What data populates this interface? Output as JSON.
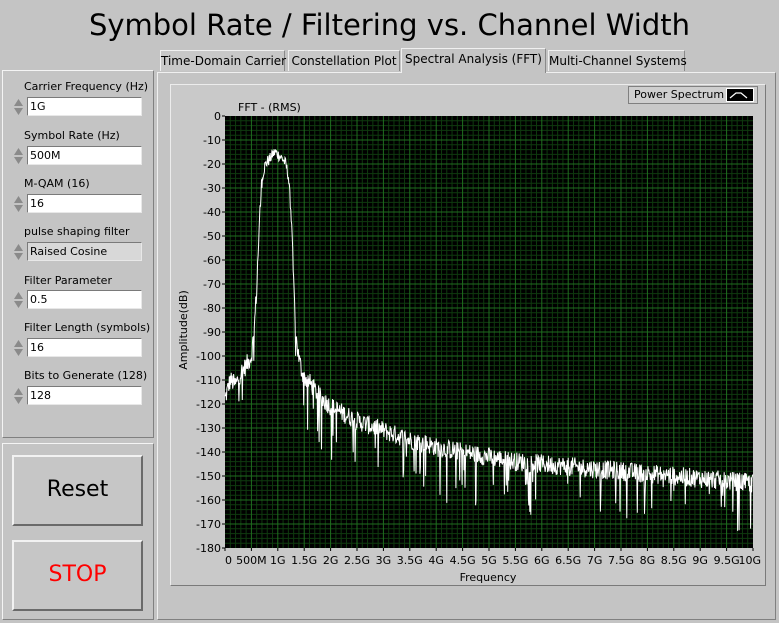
{
  "window": {
    "title": "Symbol Rate / Filtering vs. Channel Width"
  },
  "tabs": [
    {
      "label": "Time-Domain Carrier",
      "active": false
    },
    {
      "label": "Constellation Plot",
      "active": false
    },
    {
      "label": "Spectral Analysis (FFT)",
      "active": true
    },
    {
      "label": "Multi-Channel Systems",
      "active": false
    }
  ],
  "controls": {
    "carrier_frequency": {
      "label": "Carrier Frequency (Hz)",
      "value": "1G"
    },
    "symbol_rate": {
      "label": "Symbol Rate (Hz)",
      "value": "500M"
    },
    "mqam": {
      "label": "M-QAM (16)",
      "value": "16"
    },
    "pulse_filter": {
      "label": "pulse shaping filter",
      "value": "Raised Cosine"
    },
    "filter_parameter": {
      "label": "Filter Parameter",
      "value": "0.5"
    },
    "filter_length": {
      "label": "Filter Length (symbols)",
      "value": "16"
    },
    "bits_to_generate": {
      "label": "Bits to Generate (128)",
      "value": "128"
    }
  },
  "buttons": {
    "reset": {
      "label": "Reset",
      "color": "#000000"
    },
    "stop": {
      "label": "STOP",
      "color": "#ff0000"
    }
  },
  "colors": {
    "plot_bg": "#000000",
    "grid_major": "#1f6e1f",
    "grid_minor": "#0f3a0f",
    "trace": "#ffffff"
  },
  "chart_data": {
    "type": "line",
    "title": "FFT - (RMS)",
    "xlabel": "Frequency",
    "ylabel": "Amplitude(dB)",
    "legend": {
      "entries": [
        "Power Spectrum"
      ],
      "position": "top-right"
    },
    "xlim": [
      0,
      10000000000
    ],
    "ylim": [
      -180,
      0
    ],
    "grid": true,
    "x_tick_labels": [
      "0",
      "500M",
      "1G",
      "1.5G",
      "2G",
      "2.5G",
      "3G",
      "3.5G",
      "4G",
      "4.5G",
      "5G",
      "5.5G",
      "6G",
      "6.5G",
      "7G",
      "7.5G",
      "8G",
      "8.5G",
      "9G",
      "9.5G",
      "10G"
    ],
    "y_tick_labels": [
      "0",
      "-10",
      "-20",
      "-30",
      "-40",
      "-50",
      "-60",
      "-70",
      "-80",
      "-90",
      "-100",
      "-110",
      "-120",
      "-130",
      "-140",
      "-150",
      "-160",
      "-170",
      "-180"
    ],
    "series": [
      {
        "name": "Power Spectrum",
        "x": [
          0,
          100000000,
          200000000,
          300000000,
          400000000,
          500000000,
          550000000,
          600000000,
          650000000,
          700000000,
          750000000,
          800000000,
          850000000,
          900000000,
          950000000,
          1000000000,
          1050000000,
          1100000000,
          1150000000,
          1200000000,
          1250000000,
          1300000000,
          1350000000,
          1400000000,
          1450000000,
          1500000000,
          1600000000,
          1700000000,
          1800000000,
          1900000000,
          2000000000,
          2250000000,
          2500000000,
          2750000000,
          3000000000,
          3250000000,
          3500000000,
          3750000000,
          4000000000,
          4500000000,
          5000000000,
          5500000000,
          6000000000,
          6500000000,
          7000000000,
          7500000000,
          8000000000,
          8500000000,
          9000000000,
          9500000000,
          10000000000
        ],
        "y": [
          -118,
          -110,
          -112,
          -107,
          -104,
          -100,
          -90,
          -72,
          -45,
          -26,
          -21,
          -19,
          -18,
          -16,
          -15,
          -16,
          -17,
          -18,
          -20,
          -25,
          -40,
          -70,
          -93,
          -101,
          -106,
          -109,
          -111,
          -114,
          -117,
          -119,
          -121,
          -124,
          -127,
          -129,
          -131,
          -133,
          -135,
          -136,
          -138,
          -140,
          -142,
          -144,
          -145,
          -146,
          -147,
          -148,
          -149,
          -150,
          -151,
          -152,
          -153
        ]
      }
    ]
  }
}
